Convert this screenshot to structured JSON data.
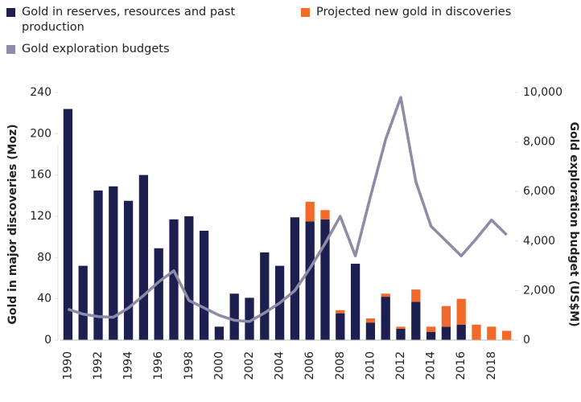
{
  "chart_data": {
    "type": "bar",
    "categories": [
      "1990",
      null,
      "1992",
      null,
      "1994",
      null,
      "1996",
      null,
      "1998",
      null,
      "2000",
      null,
      "2002",
      null,
      "2004",
      null,
      "2006",
      null,
      "2008",
      null,
      "2010",
      null,
      "2012",
      null,
      "2014",
      null,
      "2016",
      null,
      "2018",
      null
    ],
    "series": [
      {
        "name": "Gold in reserves, resources and past production",
        "color": "#1c1f4f",
        "stack": true,
        "values": [
          224,
          72,
          145,
          149,
          135,
          160,
          89,
          117,
          120,
          106,
          13,
          45,
          41,
          85,
          72,
          119,
          115,
          117,
          26,
          74,
          17,
          42,
          11,
          37,
          8,
          13,
          15,
          0,
          0,
          0
        ]
      },
      {
        "name": "Projected new gold in discoveries",
        "color": "#f26a2a",
        "stack": true,
        "values": [
          0,
          0,
          0,
          0,
          0,
          0,
          0,
          0,
          0,
          0,
          0,
          0,
          0,
          0,
          0,
          0,
          19,
          9,
          3,
          0,
          4,
          3,
          2,
          12,
          5,
          20,
          25,
          15,
          13,
          9
        ]
      },
      {
        "name": "Gold exploration budgets",
        "color": "#8c8ca6",
        "type": "line",
        "axis": "y2",
        "values": [
          1250,
          1050,
          950,
          920,
          1300,
          1800,
          2350,
          2800,
          1600,
          1300,
          1000,
          800,
          750,
          1100,
          1500,
          2000,
          2900,
          3900,
          5000,
          3400,
          5800,
          8100,
          9800,
          6400,
          4600,
          4000,
          3400,
          4100,
          4850,
          4250
        ]
      }
    ],
    "ylabel": "Gold in major discoveries (Moz)",
    "y2label": "Gold exploration budget (US$M)",
    "ylim": [
      0,
      240
    ],
    "yticks": [
      0,
      40,
      80,
      120,
      160,
      200,
      240
    ],
    "y2lim": [
      0,
      10000
    ],
    "y2ticks": [
      0,
      {
        "value": 2000,
        "label": "2,000"
      },
      {
        "value": 4000,
        "label": "4,000"
      },
      {
        "value": 6000,
        "label": "6,000"
      },
      {
        "value": 8000,
        "label": "8,000"
      },
      {
        "value": 10000,
        "label": "10,000"
      }
    ],
    "legend": "top-left",
    "grid": false
  }
}
